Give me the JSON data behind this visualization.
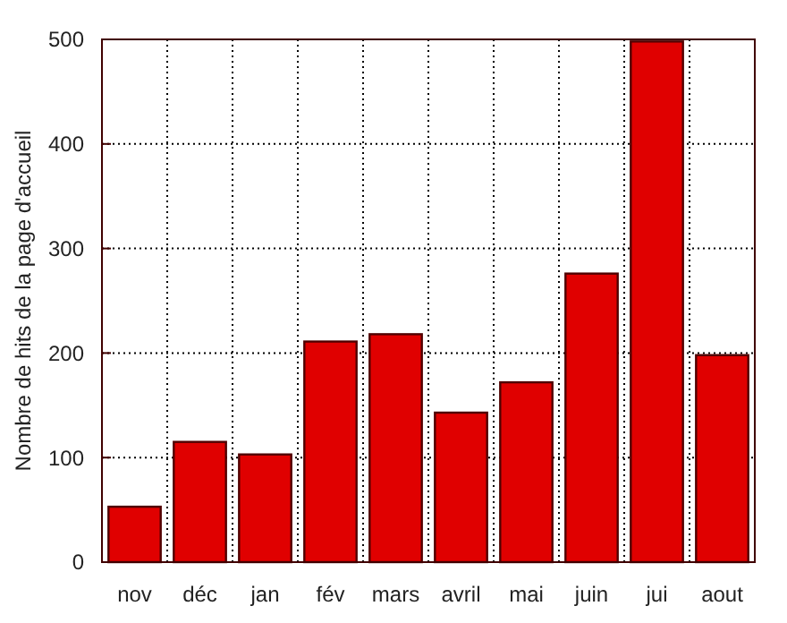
{
  "chart_data": {
    "type": "bar",
    "ylabel": "Nombre de hits de la page d'accueil",
    "categories": [
      "nov",
      "déc",
      "jan",
      "fév",
      "mars",
      "avril",
      "mai",
      "juin",
      "jui",
      "aout"
    ],
    "values": [
      53,
      115,
      103,
      211,
      218,
      143,
      172,
      276,
      498,
      198
    ],
    "color": "#e00000",
    "ylim": [
      0,
      500
    ],
    "yticks": [
      0,
      100,
      200,
      300,
      400,
      500
    ],
    "grid": true
  }
}
